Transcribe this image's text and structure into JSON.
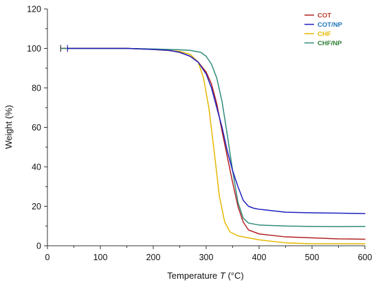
{
  "chart_data": {
    "type": "line",
    "title": "",
    "xlabel": {
      "prefix": "Temperature ",
      "italic": "T",
      "suffix": " (°C)"
    },
    "ylabel": "Weight  (%)",
    "xlim": [
      0,
      600
    ],
    "ylim": [
      0,
      120
    ],
    "x_ticks": [
      0,
      100,
      200,
      300,
      400,
      500,
      600
    ],
    "y_ticks": [
      0,
      20,
      40,
      60,
      80,
      100,
      120
    ],
    "grid": false,
    "legend_position": "top-right",
    "series": [
      {
        "name": "COT",
        "color": "#b22222",
        "label_color": "#c0392b",
        "points": [
          [
            25,
            100
          ],
          [
            50,
            100
          ],
          [
            100,
            100
          ],
          [
            150,
            100
          ],
          [
            200,
            99.5
          ],
          [
            230,
            99
          ],
          [
            250,
            98
          ],
          [
            270,
            96
          ],
          [
            285,
            93
          ],
          [
            300,
            88
          ],
          [
            310,
            82
          ],
          [
            320,
            72
          ],
          [
            330,
            58
          ],
          [
            340,
            45
          ],
          [
            350,
            32
          ],
          [
            360,
            20
          ],
          [
            370,
            12
          ],
          [
            380,
            8
          ],
          [
            400,
            6
          ],
          [
            450,
            4.5
          ],
          [
            500,
            4
          ],
          [
            550,
            3.5
          ],
          [
            600,
            3.3
          ]
        ]
      },
      {
        "name": "COT/NP",
        "color": "#1f1fbf",
        "label_color": "#1f77b4",
        "points": [
          [
            38,
            100
          ],
          [
            50,
            100
          ],
          [
            100,
            100
          ],
          [
            150,
            100
          ],
          [
            200,
            99.5
          ],
          [
            230,
            99
          ],
          [
            250,
            98
          ],
          [
            270,
            96
          ],
          [
            285,
            93
          ],
          [
            300,
            87
          ],
          [
            310,
            80
          ],
          [
            320,
            70
          ],
          [
            330,
            60
          ],
          [
            340,
            48
          ],
          [
            350,
            38
          ],
          [
            360,
            30
          ],
          [
            370,
            23
          ],
          [
            380,
            20
          ],
          [
            390,
            19
          ],
          [
            400,
            18.5
          ],
          [
            450,
            17
          ],
          [
            500,
            16.7
          ],
          [
            550,
            16.5
          ],
          [
            600,
            16.3
          ]
        ]
      },
      {
        "name": "CHF",
        "color": "#e6b800",
        "label_color": "#e6b800",
        "points": [
          [
            25,
            100
          ],
          [
            50,
            100
          ],
          [
            100,
            100
          ],
          [
            150,
            100
          ],
          [
            200,
            99.5
          ],
          [
            250,
            98.5
          ],
          [
            270,
            97
          ],
          [
            285,
            93
          ],
          [
            295,
            85
          ],
          [
            305,
            70
          ],
          [
            315,
            48
          ],
          [
            325,
            25
          ],
          [
            335,
            12
          ],
          [
            345,
            7
          ],
          [
            360,
            5
          ],
          [
            380,
            4
          ],
          [
            400,
            3
          ],
          [
            450,
            1.5
          ],
          [
            500,
            1
          ],
          [
            550,
            1
          ],
          [
            600,
            1
          ]
        ]
      },
      {
        "name": "CHF/NP",
        "color": "#2e8b7a",
        "label_color": "#2e7d32",
        "points": [
          [
            25,
            100
          ],
          [
            50,
            100
          ],
          [
            100,
            100
          ],
          [
            150,
            100
          ],
          [
            200,
            99.7
          ],
          [
            250,
            99.3
          ],
          [
            270,
            99
          ],
          [
            290,
            98
          ],
          [
            300,
            96
          ],
          [
            310,
            92
          ],
          [
            320,
            85
          ],
          [
            330,
            73
          ],
          [
            340,
            56
          ],
          [
            350,
            38
          ],
          [
            360,
            22
          ],
          [
            370,
            14
          ],
          [
            380,
            11.5
          ],
          [
            400,
            10.5
          ],
          [
            450,
            10
          ],
          [
            500,
            9.8
          ],
          [
            550,
            9.7
          ],
          [
            600,
            9.8
          ]
        ]
      }
    ],
    "start_marker_color": "#555555"
  }
}
